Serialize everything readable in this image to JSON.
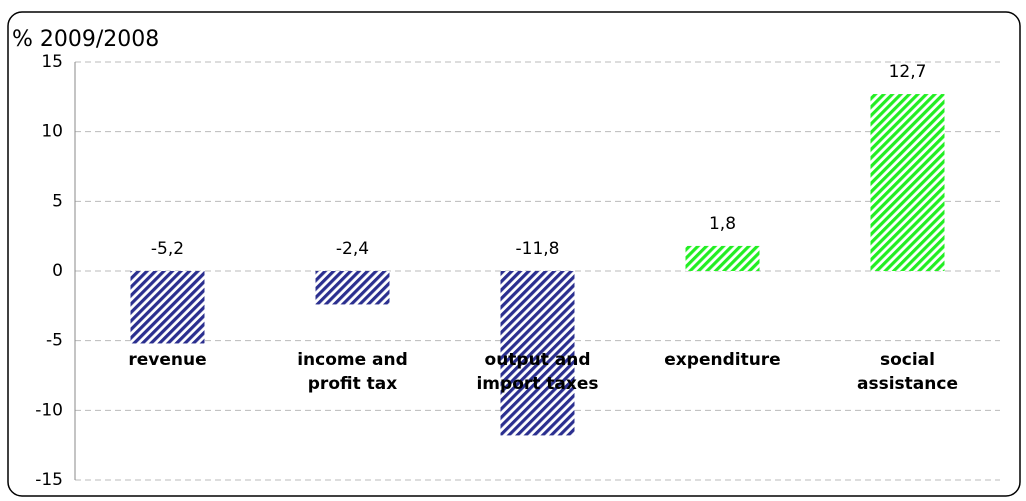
{
  "chart_data": {
    "type": "bar",
    "y_title": "% 2009/2008",
    "categories": [
      [
        "revenue"
      ],
      [
        "income and",
        "profit tax"
      ],
      [
        "output and",
        "import taxes"
      ],
      [
        "expenditure"
      ],
      [
        "social",
        "assistance"
      ]
    ],
    "values": [
      -5.2,
      -2.4,
      -11.8,
      1.8,
      12.7
    ],
    "value_labels": [
      "-5,2",
      "-2,4",
      "-11,8",
      "1,8",
      "12,7"
    ],
    "colors": [
      "#2b2f8f",
      "#2b2f8f",
      "#2b2f8f",
      "#22ee22",
      "#22ee22"
    ],
    "ylim": [
      -15,
      15
    ],
    "yticks": [
      -15,
      -10,
      -5,
      0,
      5,
      10,
      15
    ],
    "grid": true
  }
}
